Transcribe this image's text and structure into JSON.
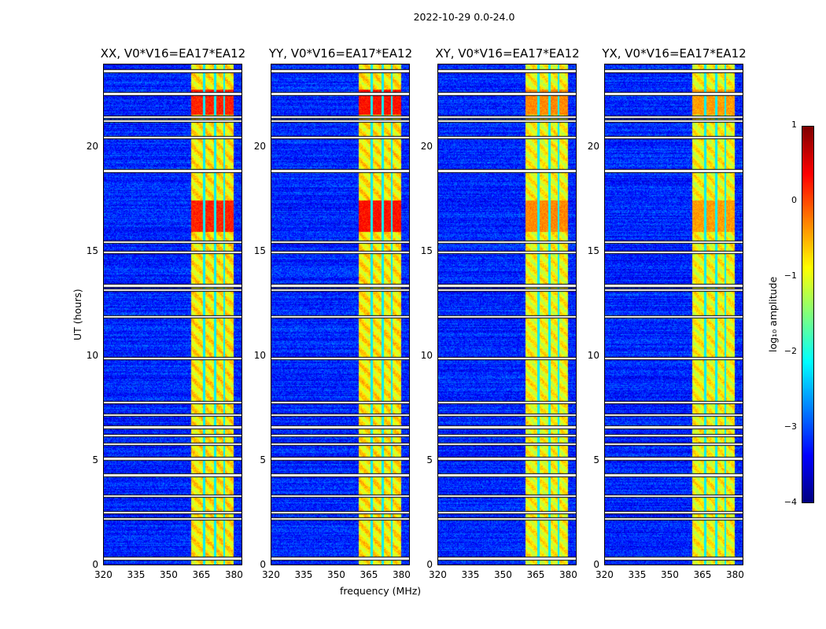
{
  "chart_data": {
    "type": "heatmap",
    "suptitle": "2022-10-29 0.0-24.0",
    "xlabel": "frequency (MHz)",
    "ylabel": "UT (hours)",
    "xlim": [
      320,
      384
    ],
    "ylim": [
      0,
      24
    ],
    "xticks": [
      "320",
      "335",
      "350",
      "365",
      "380"
    ],
    "xtick_values": [
      320,
      335,
      350,
      365,
      380
    ],
    "yticks": [
      "0",
      "5",
      "10",
      "15",
      "20"
    ],
    "ytick_values": [
      0,
      5,
      10,
      15,
      20
    ],
    "panels": [
      {
        "title": "XX, V0*V16=EA17*EA12",
        "band_level": -0.8,
        "burst_level": 0.2
      },
      {
        "title": "YY, V0*V16=EA17*EA12",
        "band_level": -0.8,
        "burst_level": 0.3
      },
      {
        "title": "XY, V0*V16=EA17*EA12",
        "band_level": -0.9,
        "burst_level": 0.1
      },
      {
        "title": "YX, V0*V16=EA17*EA12",
        "band_level": -0.9,
        "burst_level": 0.0
      }
    ],
    "background_level": -3.2,
    "rfi_band_mhz": [
      360.5,
      380
    ],
    "burst_hours": [
      [
        16.0,
        17.5
      ],
      [
        21.6,
        22.8
      ]
    ],
    "flagged_hours": [
      0.3,
      2.2,
      2.5,
      3.3,
      4.3,
      5.1,
      5.8,
      6.2,
      6.6,
      7.2,
      7.8,
      9.9,
      11.9,
      13.2,
      13.4,
      15.0,
      15.5,
      18.9,
      20.5,
      21.3,
      21.5,
      22.6,
      23.7
    ],
    "colorbar": {
      "label": "log₁₀ amplitude",
      "ticks": [
        "1",
        "0",
        "−1",
        "−2",
        "−3",
        "−4"
      ],
      "tick_values": [
        1,
        0,
        -1,
        -2,
        -3,
        -4
      ],
      "range": [
        -4,
        1
      ],
      "colormap": "jet"
    }
  }
}
